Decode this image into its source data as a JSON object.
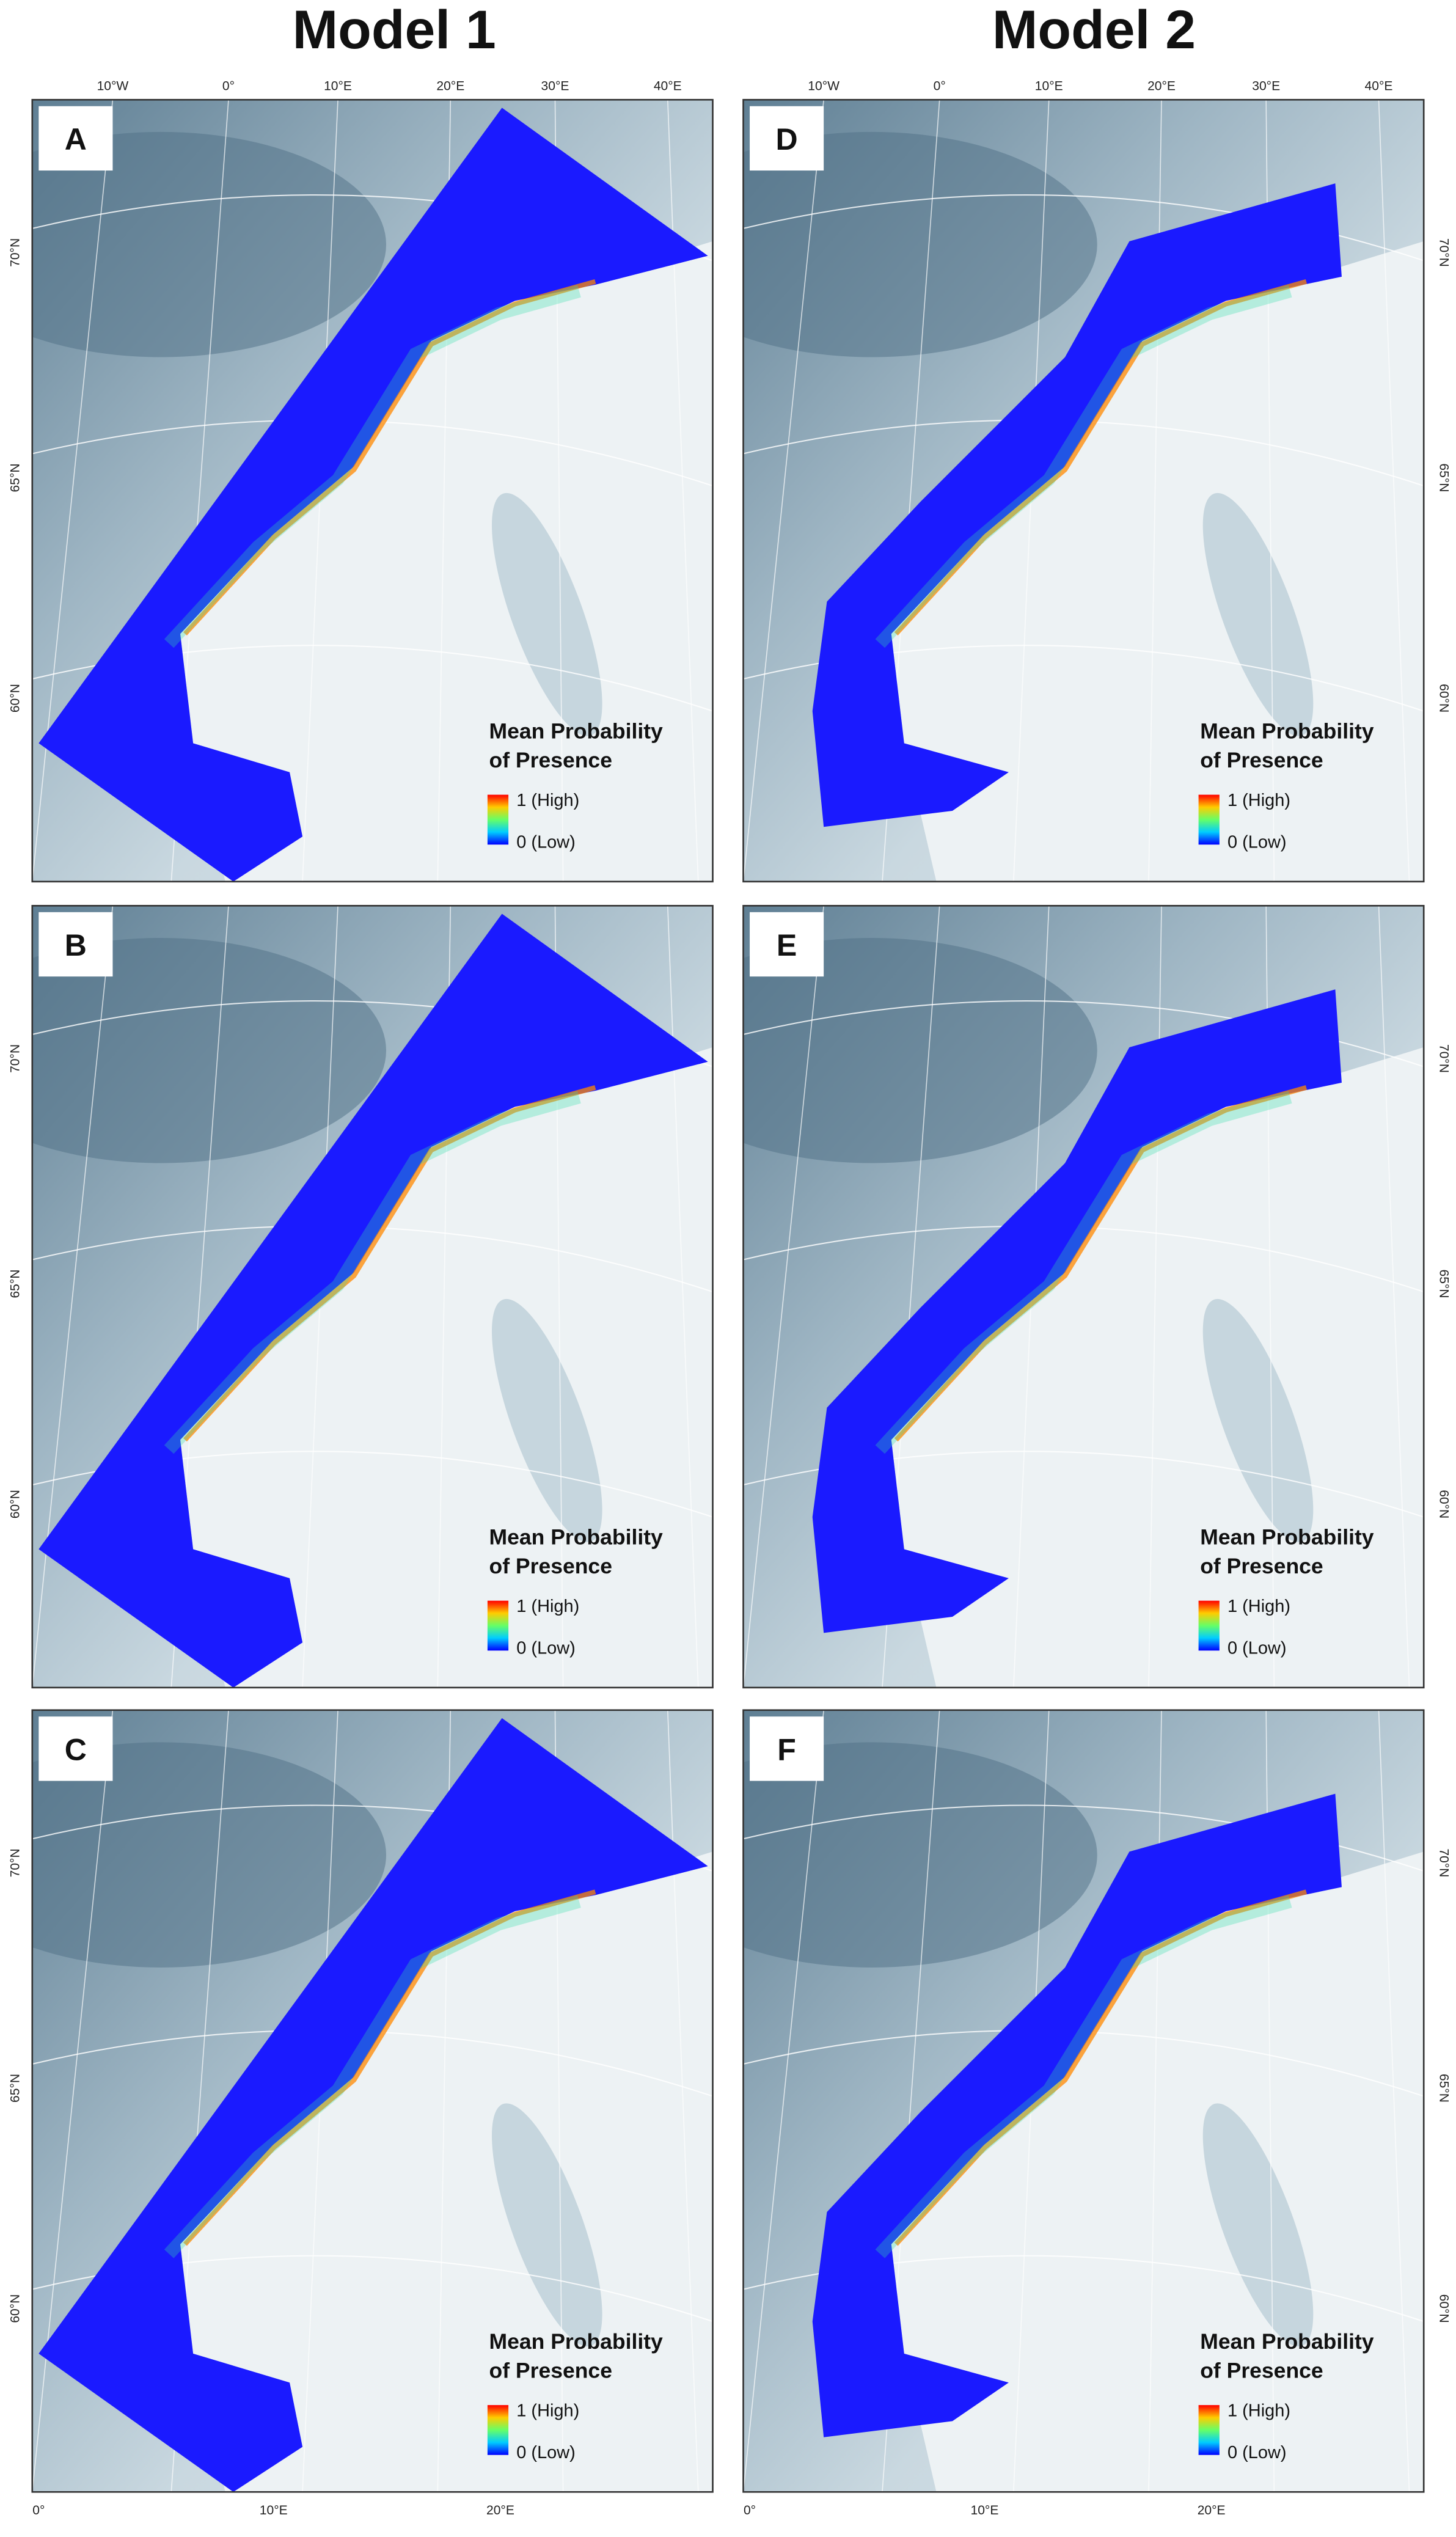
{
  "columns": [
    "Model 1",
    "Model 2"
  ],
  "panels": [
    {
      "label": "A",
      "legend": {
        "title_line1": "Mean Probability",
        "title_line2": "of Presence",
        "high": "1 (High)",
        "low": "0 (Low)"
      },
      "top_ticks": [
        "10°W",
        "0°",
        "10°E",
        "20°E",
        "30°E",
        "40°E"
      ],
      "lat_ticks": [
        "70°N",
        "65°N",
        "60°N"
      ],
      "bottom_ticks": []
    },
    {
      "label": "D",
      "legend": {
        "title_line1": "Mean Probability",
        "title_line2": "of Presence",
        "high": "1 (High)",
        "low": "0 (Low)"
      },
      "top_ticks": [
        "10°W",
        "0°",
        "10°E",
        "20°E",
        "30°E",
        "40°E"
      ],
      "lat_ticks": [
        "70°N",
        "65°N",
        "60°N"
      ],
      "bottom_ticks": []
    },
    {
      "label": "B",
      "legend": {
        "title_line1": "Mean Probability",
        "title_line2": "of Presence",
        "high": "1 (High)",
        "low": "0 (Low)"
      },
      "top_ticks": [],
      "lat_ticks": [
        "70°N",
        "65°N",
        "60°N"
      ],
      "bottom_ticks": []
    },
    {
      "label": "E",
      "legend": {
        "title_line1": "Mean Probability",
        "title_line2": "of Presence",
        "high": "1 (High)",
        "low": "0 (Low)"
      },
      "top_ticks": [],
      "lat_ticks": [
        "70°N",
        "65°N",
        "60°N"
      ],
      "bottom_ticks": []
    },
    {
      "label": "C",
      "legend": {
        "title_line1": "Mean Probability",
        "title_line2": "of Presence",
        "high": "1 (High)",
        "low": "0 (Low)"
      },
      "top_ticks": [],
      "lat_ticks": [
        "70°N",
        "65°N",
        "60°N"
      ],
      "bottom_ticks": [
        "0°",
        "10°E",
        "20°E"
      ]
    },
    {
      "label": "F",
      "legend": {
        "title_line1": "Mean Probability",
        "title_line2": "of Presence",
        "high": "1 (High)",
        "low": "0 (Low)"
      },
      "top_ticks": [],
      "lat_ticks": [
        "70°N",
        "65°N",
        "60°N"
      ],
      "bottom_ticks": [
        "0°",
        "10°E",
        "20°E"
      ]
    }
  ]
}
